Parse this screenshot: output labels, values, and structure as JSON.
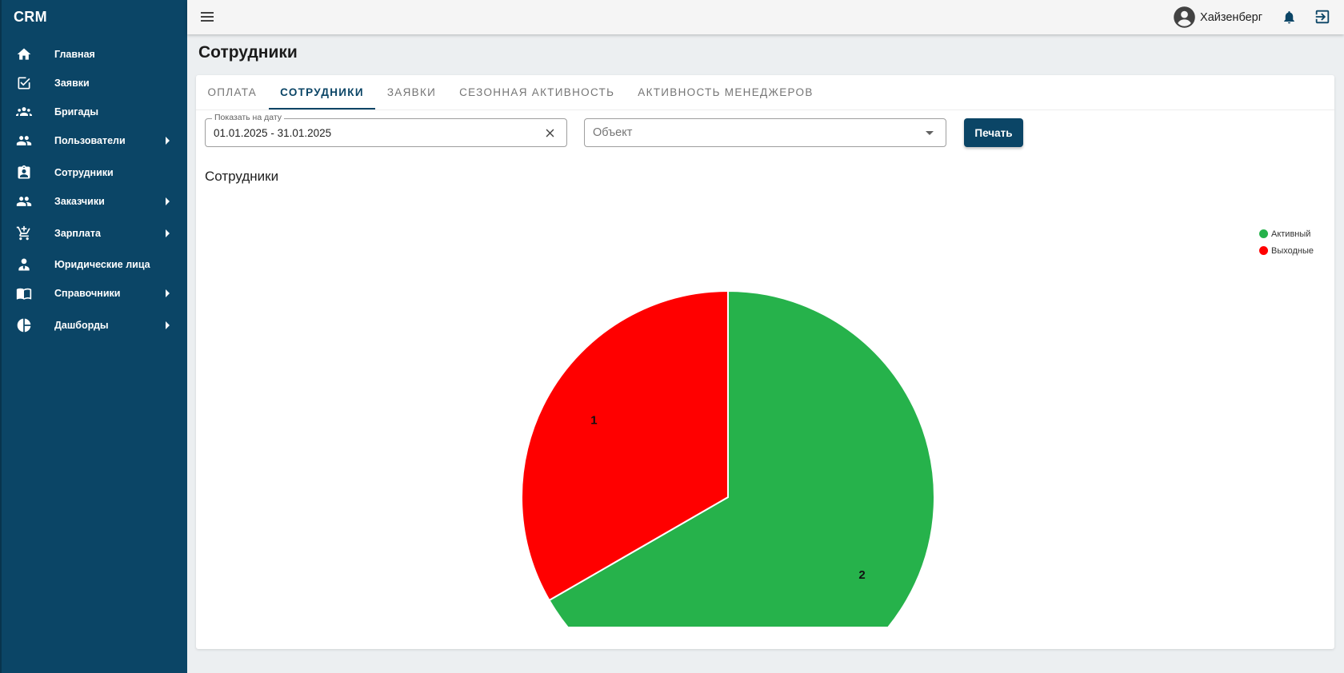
{
  "app": {
    "title": "CRM"
  },
  "sidebar": {
    "items": [
      {
        "label": "Главная",
        "icon": "home-icon",
        "has_submenu": false
      },
      {
        "label": "Заявки",
        "icon": "checkbox-icon",
        "has_submenu": false
      },
      {
        "label": "Бригады",
        "icon": "groups-icon",
        "has_submenu": false
      },
      {
        "label": "Пользователи",
        "icon": "people-icon",
        "has_submenu": true
      },
      {
        "label": "Сотрудники",
        "icon": "badge-icon",
        "has_submenu": false
      },
      {
        "label": "Заказчики",
        "icon": "people-icon",
        "has_submenu": true
      },
      {
        "label": "Зарплата",
        "icon": "cart-icon",
        "has_submenu": true
      },
      {
        "label": "Юридические лица",
        "icon": "person-tie-icon",
        "has_submenu": false
      },
      {
        "label": "Справочники",
        "icon": "book-icon",
        "has_submenu": true
      },
      {
        "label": "Дашборды",
        "icon": "pie-chart-icon",
        "has_submenu": true
      }
    ]
  },
  "topbar": {
    "user_name": "Хайзенберг"
  },
  "page": {
    "title": "Сотрудники"
  },
  "tabs": [
    {
      "label": "ОПЛАТА",
      "active": false
    },
    {
      "label": "СОТРУДНИКИ",
      "active": true
    },
    {
      "label": "ЗАЯВКИ",
      "active": false
    },
    {
      "label": "СЕЗОННАЯ АКТИВНОСТЬ",
      "active": false
    },
    {
      "label": "АКТИВНОСТЬ МЕНЕДЖЕРОВ",
      "active": false
    }
  ],
  "filters": {
    "date_label": "Показать на дату",
    "date_value": "01.01.2025 - 31.01.2025",
    "object_placeholder": "Объект",
    "print_label": "Печать"
  },
  "colors": {
    "sidebar": "#0b4566",
    "accent": "#0b4566",
    "active": "#26b24b",
    "weekend": "#ff0000"
  },
  "chart_data": {
    "type": "pie",
    "title": "Сотрудники",
    "legend_position": "top-right",
    "series": [
      {
        "name": "Активный",
        "value": 2,
        "color": "#26b24b"
      },
      {
        "name": "Выходные",
        "value": 1,
        "color": "#ff0000"
      }
    ]
  }
}
